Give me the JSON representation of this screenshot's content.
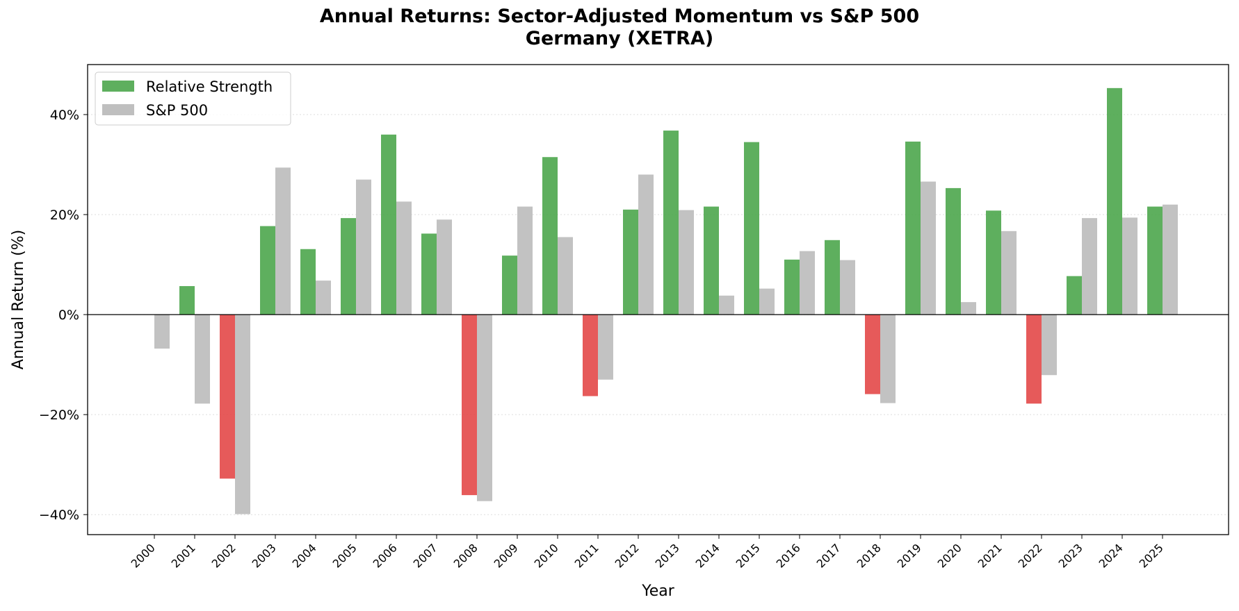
{
  "chart_data": {
    "type": "bar",
    "title": "Annual Returns: Sector-Adjusted Momentum vs S&P 500",
    "subtitle": "Germany (XETRA)",
    "xlabel": "Year",
    "ylabel": "Annual Return (%)",
    "ylim": [
      -44,
      50
    ],
    "yticks": [
      -40,
      -20,
      0,
      20,
      40
    ],
    "ytick_labels": [
      "−40%",
      "−20%",
      "0%",
      "20%",
      "40%"
    ],
    "grid": "horizontal dotted",
    "legend_position": "top-left",
    "categories": [
      "2000",
      "2001",
      "2002",
      "2003",
      "2004",
      "2005",
      "2006",
      "2007",
      "2008",
      "2009",
      "2010",
      "2011",
      "2012",
      "2013",
      "2014",
      "2015",
      "2016",
      "2017",
      "2018",
      "2019",
      "2020",
      "2021",
      "2022",
      "2023",
      "2024",
      "2025"
    ],
    "series": [
      {
        "name": "Relative Strength",
        "color": "#4ca64c",
        "negative_color": "#e34848",
        "values": [
          null,
          5.7,
          -32.8,
          17.7,
          13.1,
          19.3,
          36.0,
          16.2,
          -36.1,
          11.8,
          31.5,
          -16.3,
          21.0,
          36.8,
          21.6,
          34.5,
          11.0,
          14.9,
          -15.9,
          34.6,
          25.3,
          20.8,
          -17.8,
          7.7,
          45.3,
          21.6
        ]
      },
      {
        "name": "S&P 500",
        "color": "#bfbfbf",
        "values": [
          -6.8,
          -17.8,
          -39.9,
          29.4,
          6.8,
          27.0,
          22.6,
          19.0,
          -37.3,
          21.6,
          15.5,
          -13.0,
          28.0,
          20.9,
          3.8,
          5.2,
          12.7,
          10.9,
          -17.7,
          26.6,
          2.5,
          16.7,
          -12.1,
          19.3,
          19.4,
          22.0
        ]
      }
    ]
  }
}
